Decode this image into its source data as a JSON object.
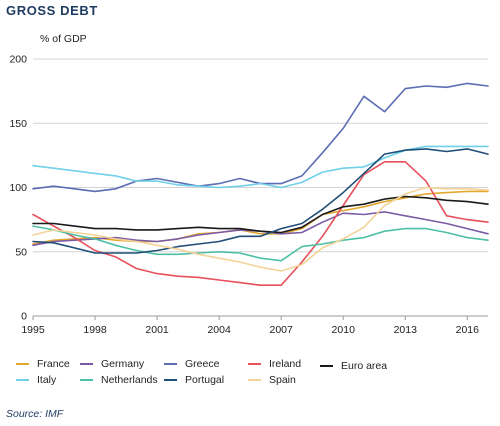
{
  "header": {
    "title": "GROSS DEBT",
    "unit": "% of GDP"
  },
  "footer": {
    "source": "Source: IMF"
  },
  "chart_data": {
    "type": "line",
    "title": "GROSS DEBT",
    "ylabel": "% of GDP",
    "xlabel": "",
    "xlim": [
      1995,
      2017
    ],
    "ylim": [
      0,
      200
    ],
    "x_ticks": [
      "1995",
      "1998",
      "2001",
      "2004",
      "2007",
      "2010",
      "2013",
      "2016"
    ],
    "y_ticks": [
      "0",
      "50",
      "100",
      "150",
      "200"
    ],
    "grid": true,
    "legend_position": "bottom",
    "x": [
      1995,
      1996,
      1997,
      1998,
      1999,
      2000,
      2001,
      2002,
      2003,
      2004,
      2005,
      2006,
      2007,
      2008,
      2009,
      2010,
      2011,
      2012,
      2013,
      2014,
      2015,
      2016,
      2017
    ],
    "series": [
      {
        "name": "France",
        "color": "#e3a72f",
        "values": [
          56,
          59,
          60,
          61,
          59,
          58,
          58,
          60,
          64,
          65,
          67,
          64,
          64,
          68,
          79,
          82,
          85,
          89,
          92,
          95,
          96,
          97,
          97
        ]
      },
      {
        "name": "Germany",
        "color": "#7b5aa6",
        "values": [
          55,
          58,
          59,
          60,
          61,
          59,
          58,
          60,
          63,
          65,
          67,
          66,
          64,
          65,
          73,
          80,
          79,
          81,
          78,
          75,
          72,
          68,
          64
        ]
      },
      {
        "name": "Greece",
        "color": "#5b6db3",
        "values": [
          99,
          101,
          99,
          97,
          99,
          105,
          107,
          104,
          101,
          103,
          107,
          103,
          103,
          109,
          127,
          146,
          171,
          159,
          177,
          179,
          178,
          181,
          179
        ]
      },
      {
        "name": "Ireland",
        "color": "#e8505b",
        "values": [
          79,
          70,
          61,
          51,
          46,
          37,
          33,
          31,
          30,
          28,
          26,
          24,
          24,
          42,
          62,
          86,
          110,
          120,
          120,
          105,
          78,
          75,
          73
        ]
      },
      {
        "name": "Euro area",
        "color": "#1a1a1a",
        "values": [
          72,
          72,
          70,
          68,
          68,
          67,
          67,
          68,
          69,
          68,
          68,
          66,
          65,
          69,
          79,
          85,
          87,
          91,
          93,
          92,
          90,
          89,
          87
        ]
      },
      {
        "name": "Italy",
        "color": "#6fd0e8",
        "values": [
          117,
          115,
          113,
          111,
          109,
          105,
          105,
          102,
          101,
          100,
          101,
          103,
          100,
          104,
          112,
          115,
          116,
          123,
          129,
          132,
          132,
          132,
          132
        ]
      },
      {
        "name": "Netherlands",
        "color": "#4cc0a4",
        "values": [
          70,
          67,
          63,
          60,
          55,
          51,
          48,
          48,
          49,
          50,
          49,
          45,
          43,
          54,
          56,
          59,
          61,
          66,
          68,
          68,
          65,
          61,
          59
        ]
      },
      {
        "name": "Portugal",
        "color": "#1f4e79",
        "values": [
          58,
          57,
          53,
          49,
          49,
          49,
          51,
          54,
          56,
          58,
          62,
          62,
          68,
          72,
          83,
          96,
          111,
          126,
          129,
          130,
          128,
          130,
          126
        ]
      },
      {
        "name": "Spain",
        "color": "#f3d398",
        "values": [
          63,
          67,
          65,
          63,
          60,
          58,
          55,
          52,
          48,
          45,
          42,
          38,
          35,
          40,
          53,
          60,
          69,
          86,
          95,
          100,
          99,
          99,
          98
        ]
      }
    ]
  }
}
